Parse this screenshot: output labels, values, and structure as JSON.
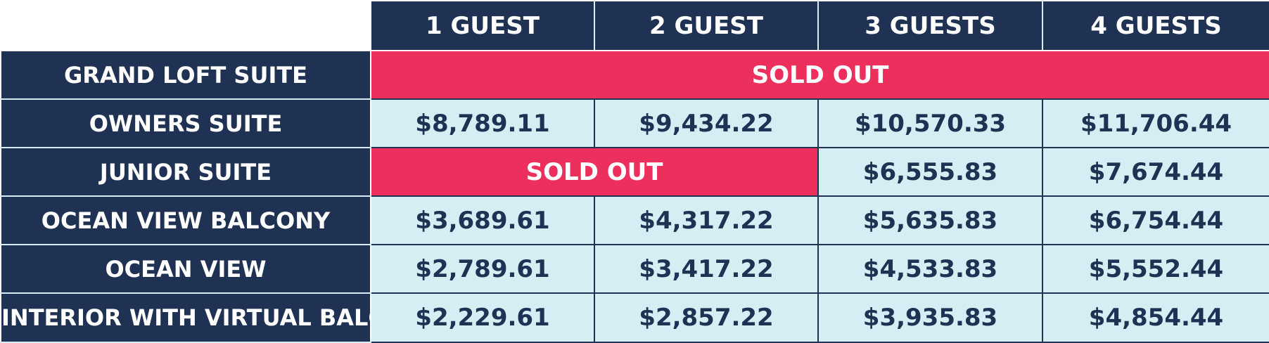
{
  "header": {
    "columns": [
      "1 GUEST",
      "2 GUEST",
      "3 GUESTS",
      "4 GUESTS"
    ]
  },
  "rows": [
    {
      "label": "GRAND LOFT SUITE",
      "sold_out_label": "SOLD OUT"
    },
    {
      "label": "OWNERS SUITE",
      "prices": [
        "$8,789.11",
        "$9,434.22",
        "$10,570.33",
        "$11,706.44"
      ]
    },
    {
      "label": "JUNIOR SUITE",
      "sold_out_label": "SOLD OUT",
      "prices": [
        null,
        null,
        "$6,555.83",
        "$7,674.44"
      ]
    },
    {
      "label": "OCEAN VIEW BALCONY",
      "prices": [
        "$3,689.61",
        "$4,317.22",
        "$5,635.83",
        "$6,754.44"
      ]
    },
    {
      "label": "OCEAN VIEW",
      "prices": [
        "$2,789.61",
        "$3,417.22",
        "$4,533.83",
        "$5,552.44"
      ]
    },
    {
      "label": "INTERIOR WITH VIRTUAL BALCONY",
      "prices": [
        "$2,229.61",
        "$2,857.22",
        "$3,935.83",
        "$4,854.44"
      ]
    }
  ],
  "colors": {
    "navy": "#203253",
    "light_cell": "#d6eef3",
    "sold_out": "#ed2f5d",
    "text_light": "#ffffff"
  }
}
